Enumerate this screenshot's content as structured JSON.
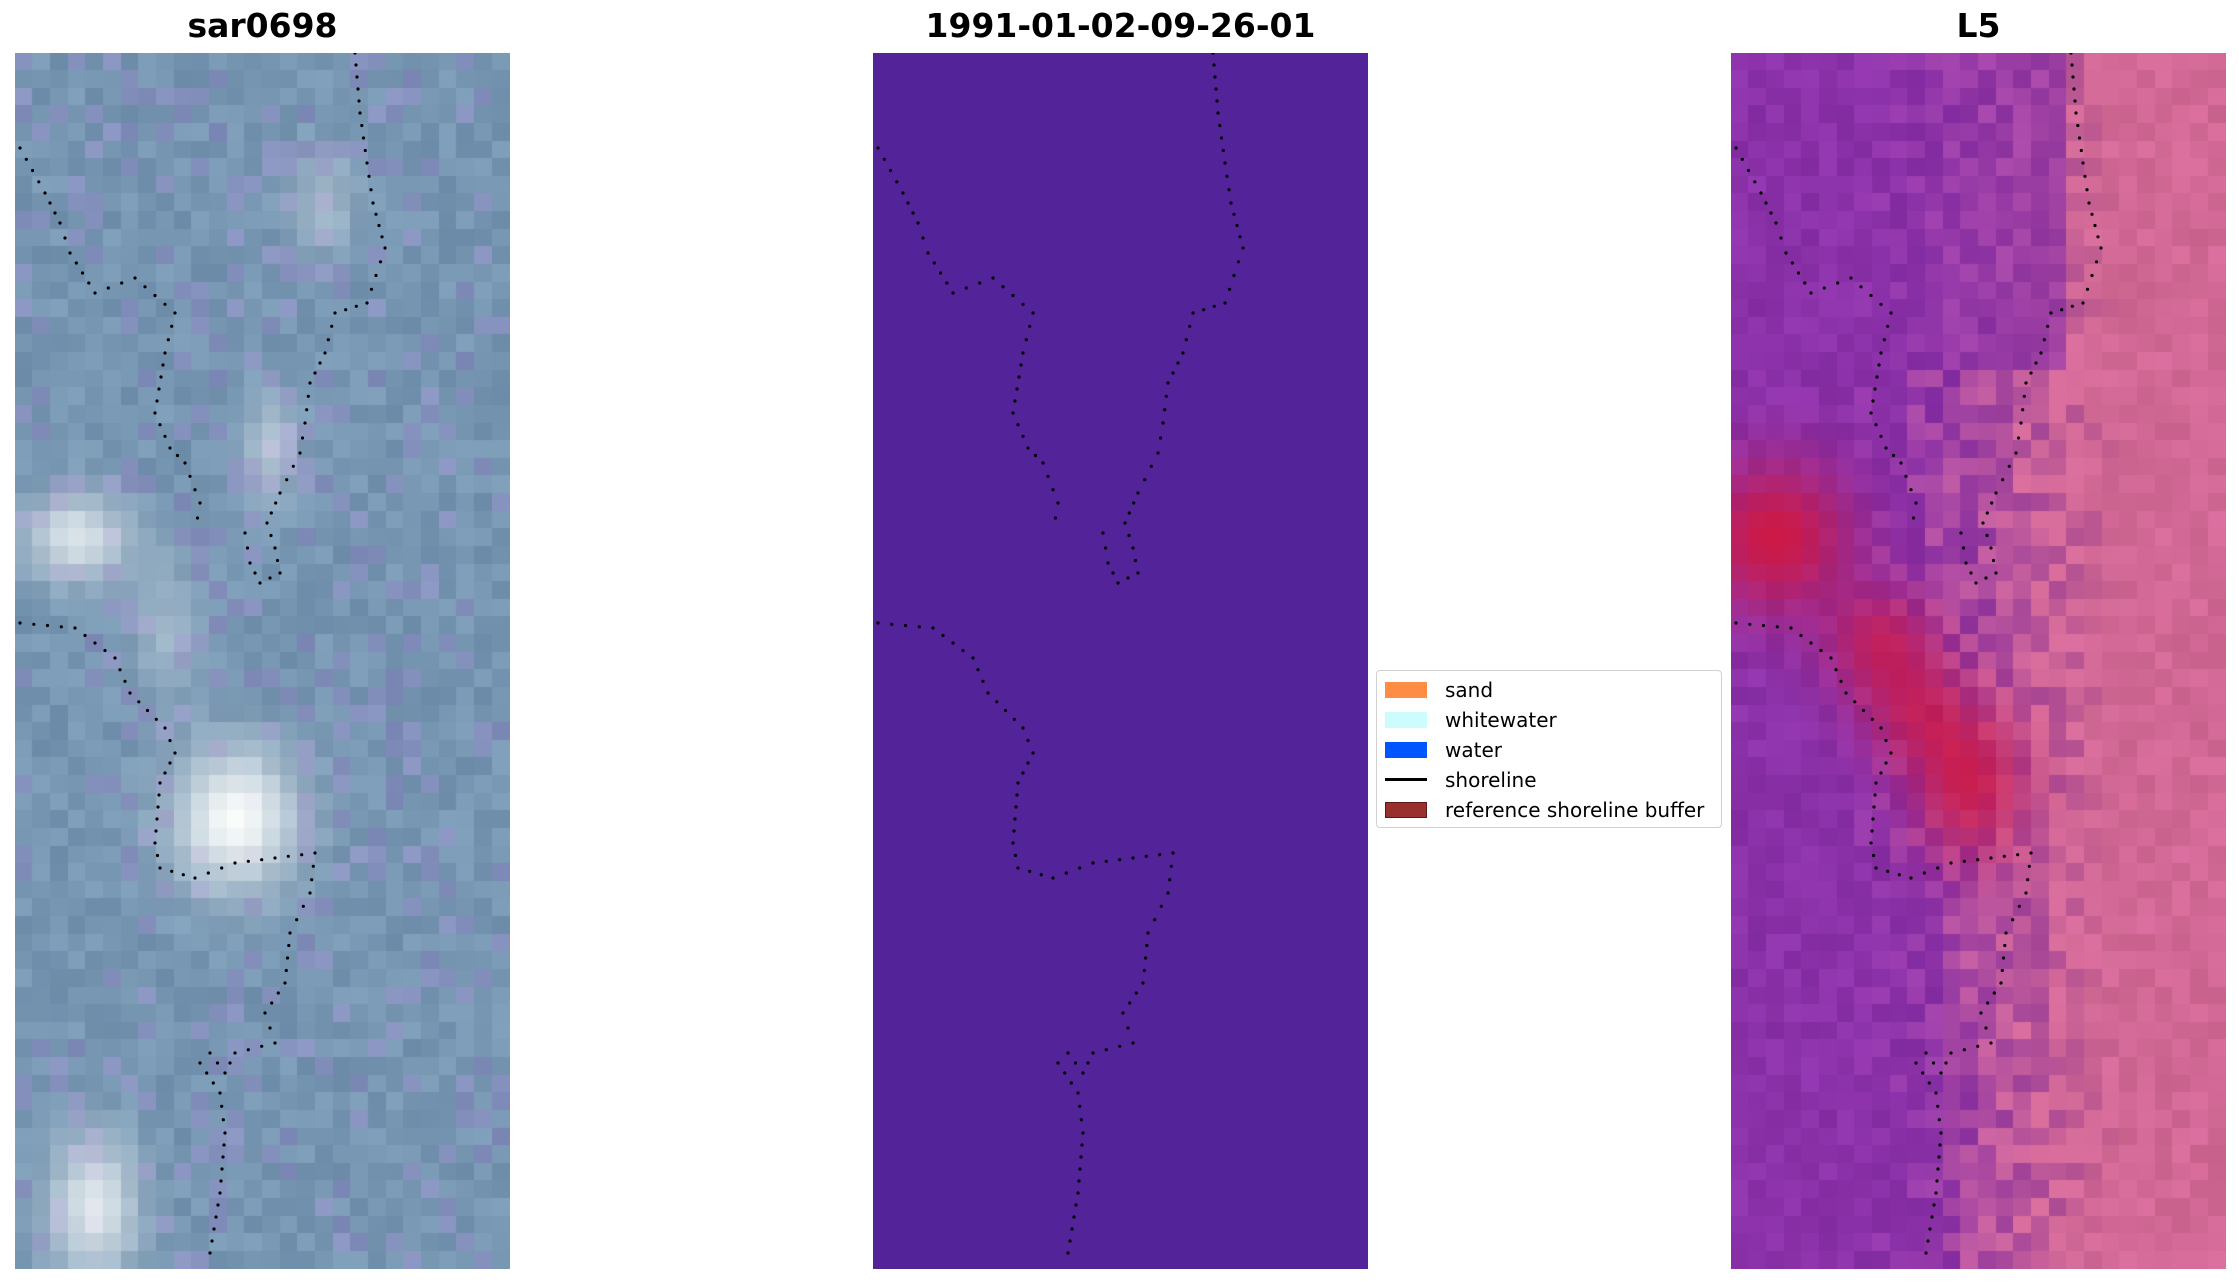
{
  "panels": [
    {
      "title": "sar0698",
      "kind": "rgb"
    },
    {
      "title": "1991-01-02-09-26-01",
      "kind": "classification",
      "fill": "#53239a"
    },
    {
      "title": "L5",
      "kind": "mndwi"
    }
  ],
  "legend": {
    "items": [
      {
        "label": "sand",
        "color": "#ff8c45",
        "type": "patch"
      },
      {
        "label": "whitewater",
        "color": "#ccfcfc",
        "type": "patch"
      },
      {
        "label": "water",
        "color": "#0055ff",
        "type": "patch"
      },
      {
        "label": "shoreline",
        "color": "#000000",
        "type": "line"
      },
      {
        "label": "reference shoreline buffer",
        "color": "#99302e",
        "type": "patch"
      }
    ]
  }
}
